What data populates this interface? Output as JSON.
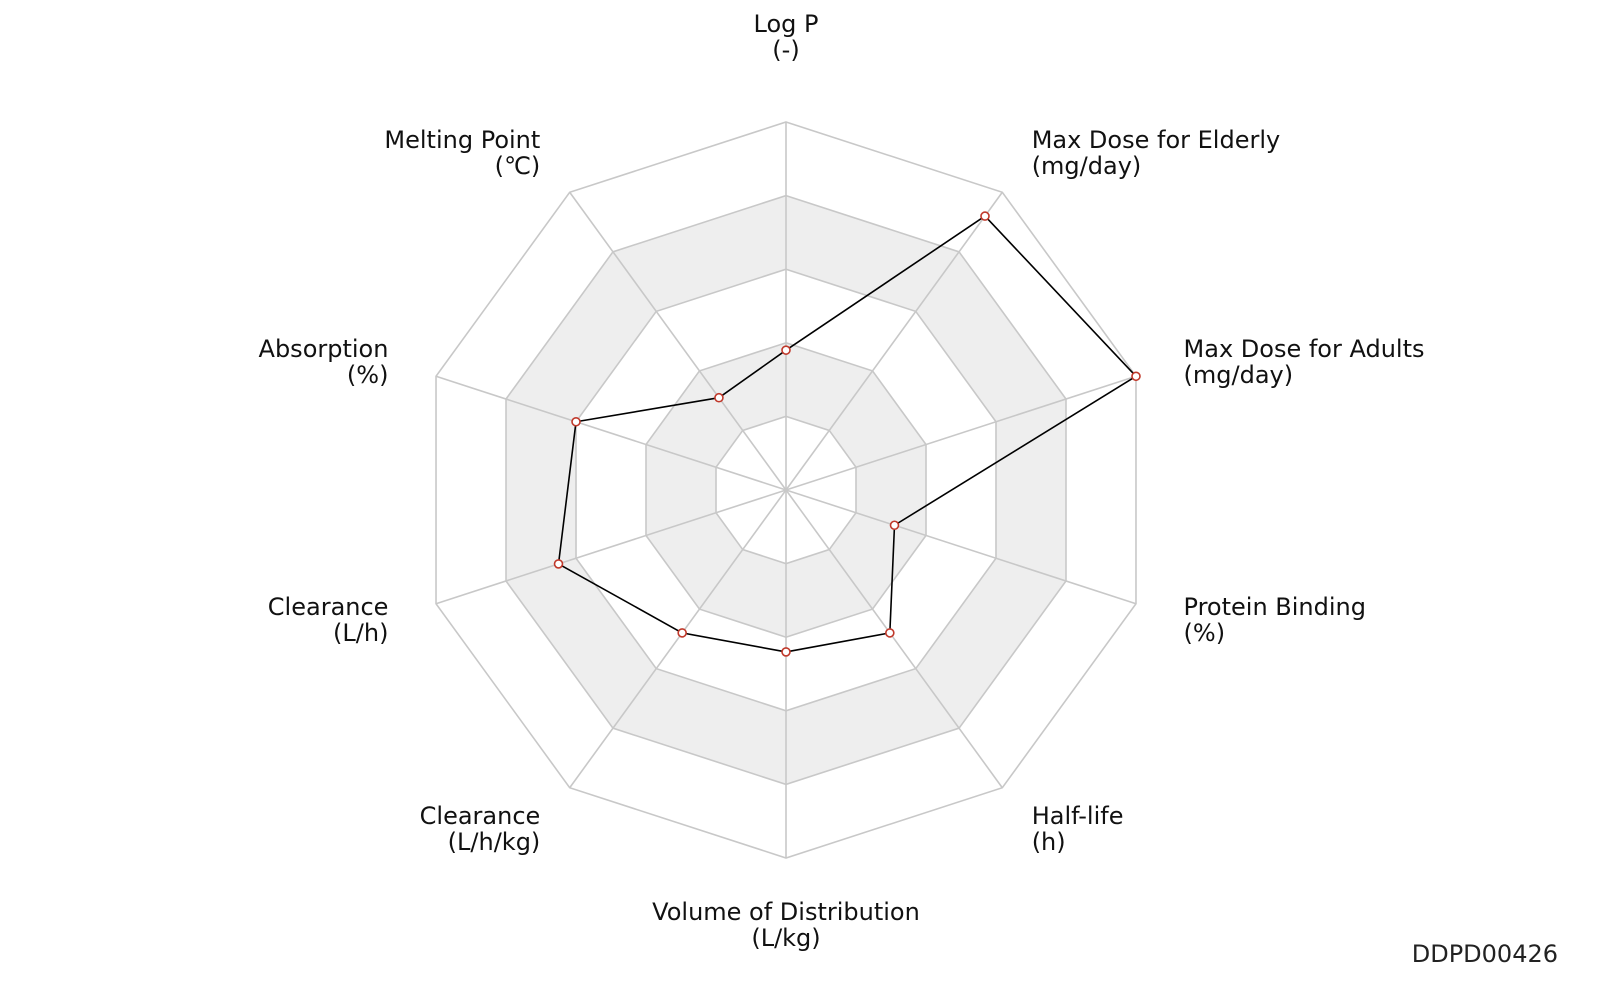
{
  "chart_data": {
    "type": "radar",
    "title": "",
    "rings": 5,
    "axes": [
      {
        "name": "Log P",
        "unit": "(-)"
      },
      {
        "name": "Max Dose for Elderly",
        "unit": "(mg/day)"
      },
      {
        "name": "Max Dose for Adults",
        "unit": "(mg/day)"
      },
      {
        "name": "Protein Binding",
        "unit": "(%)"
      },
      {
        "name": "Half-life",
        "unit": "(h)"
      },
      {
        "name": "Volume of Distribution",
        "unit": "(L/kg)"
      },
      {
        "name": "Clearance",
        "unit": "(L/h/kg)"
      },
      {
        "name": "Clearance",
        "unit": "(L/h)"
      },
      {
        "name": "Absorption",
        "unit": "(%)"
      },
      {
        "name": "Melting Point",
        "unit": "(℃)"
      }
    ],
    "series": [
      {
        "values": [
          0.38,
          0.92,
          1.0,
          0.31,
          0.48,
          0.44,
          0.48,
          0.65,
          0.6,
          0.31
        ]
      }
    ],
    "colors": {
      "line": "#000000",
      "marker_stroke": "#c0392b",
      "marker_fill": "#ffffff",
      "grid": "#c8c8c8",
      "band": "#eeeeee"
    }
  },
  "watermark": "DDPD00426"
}
